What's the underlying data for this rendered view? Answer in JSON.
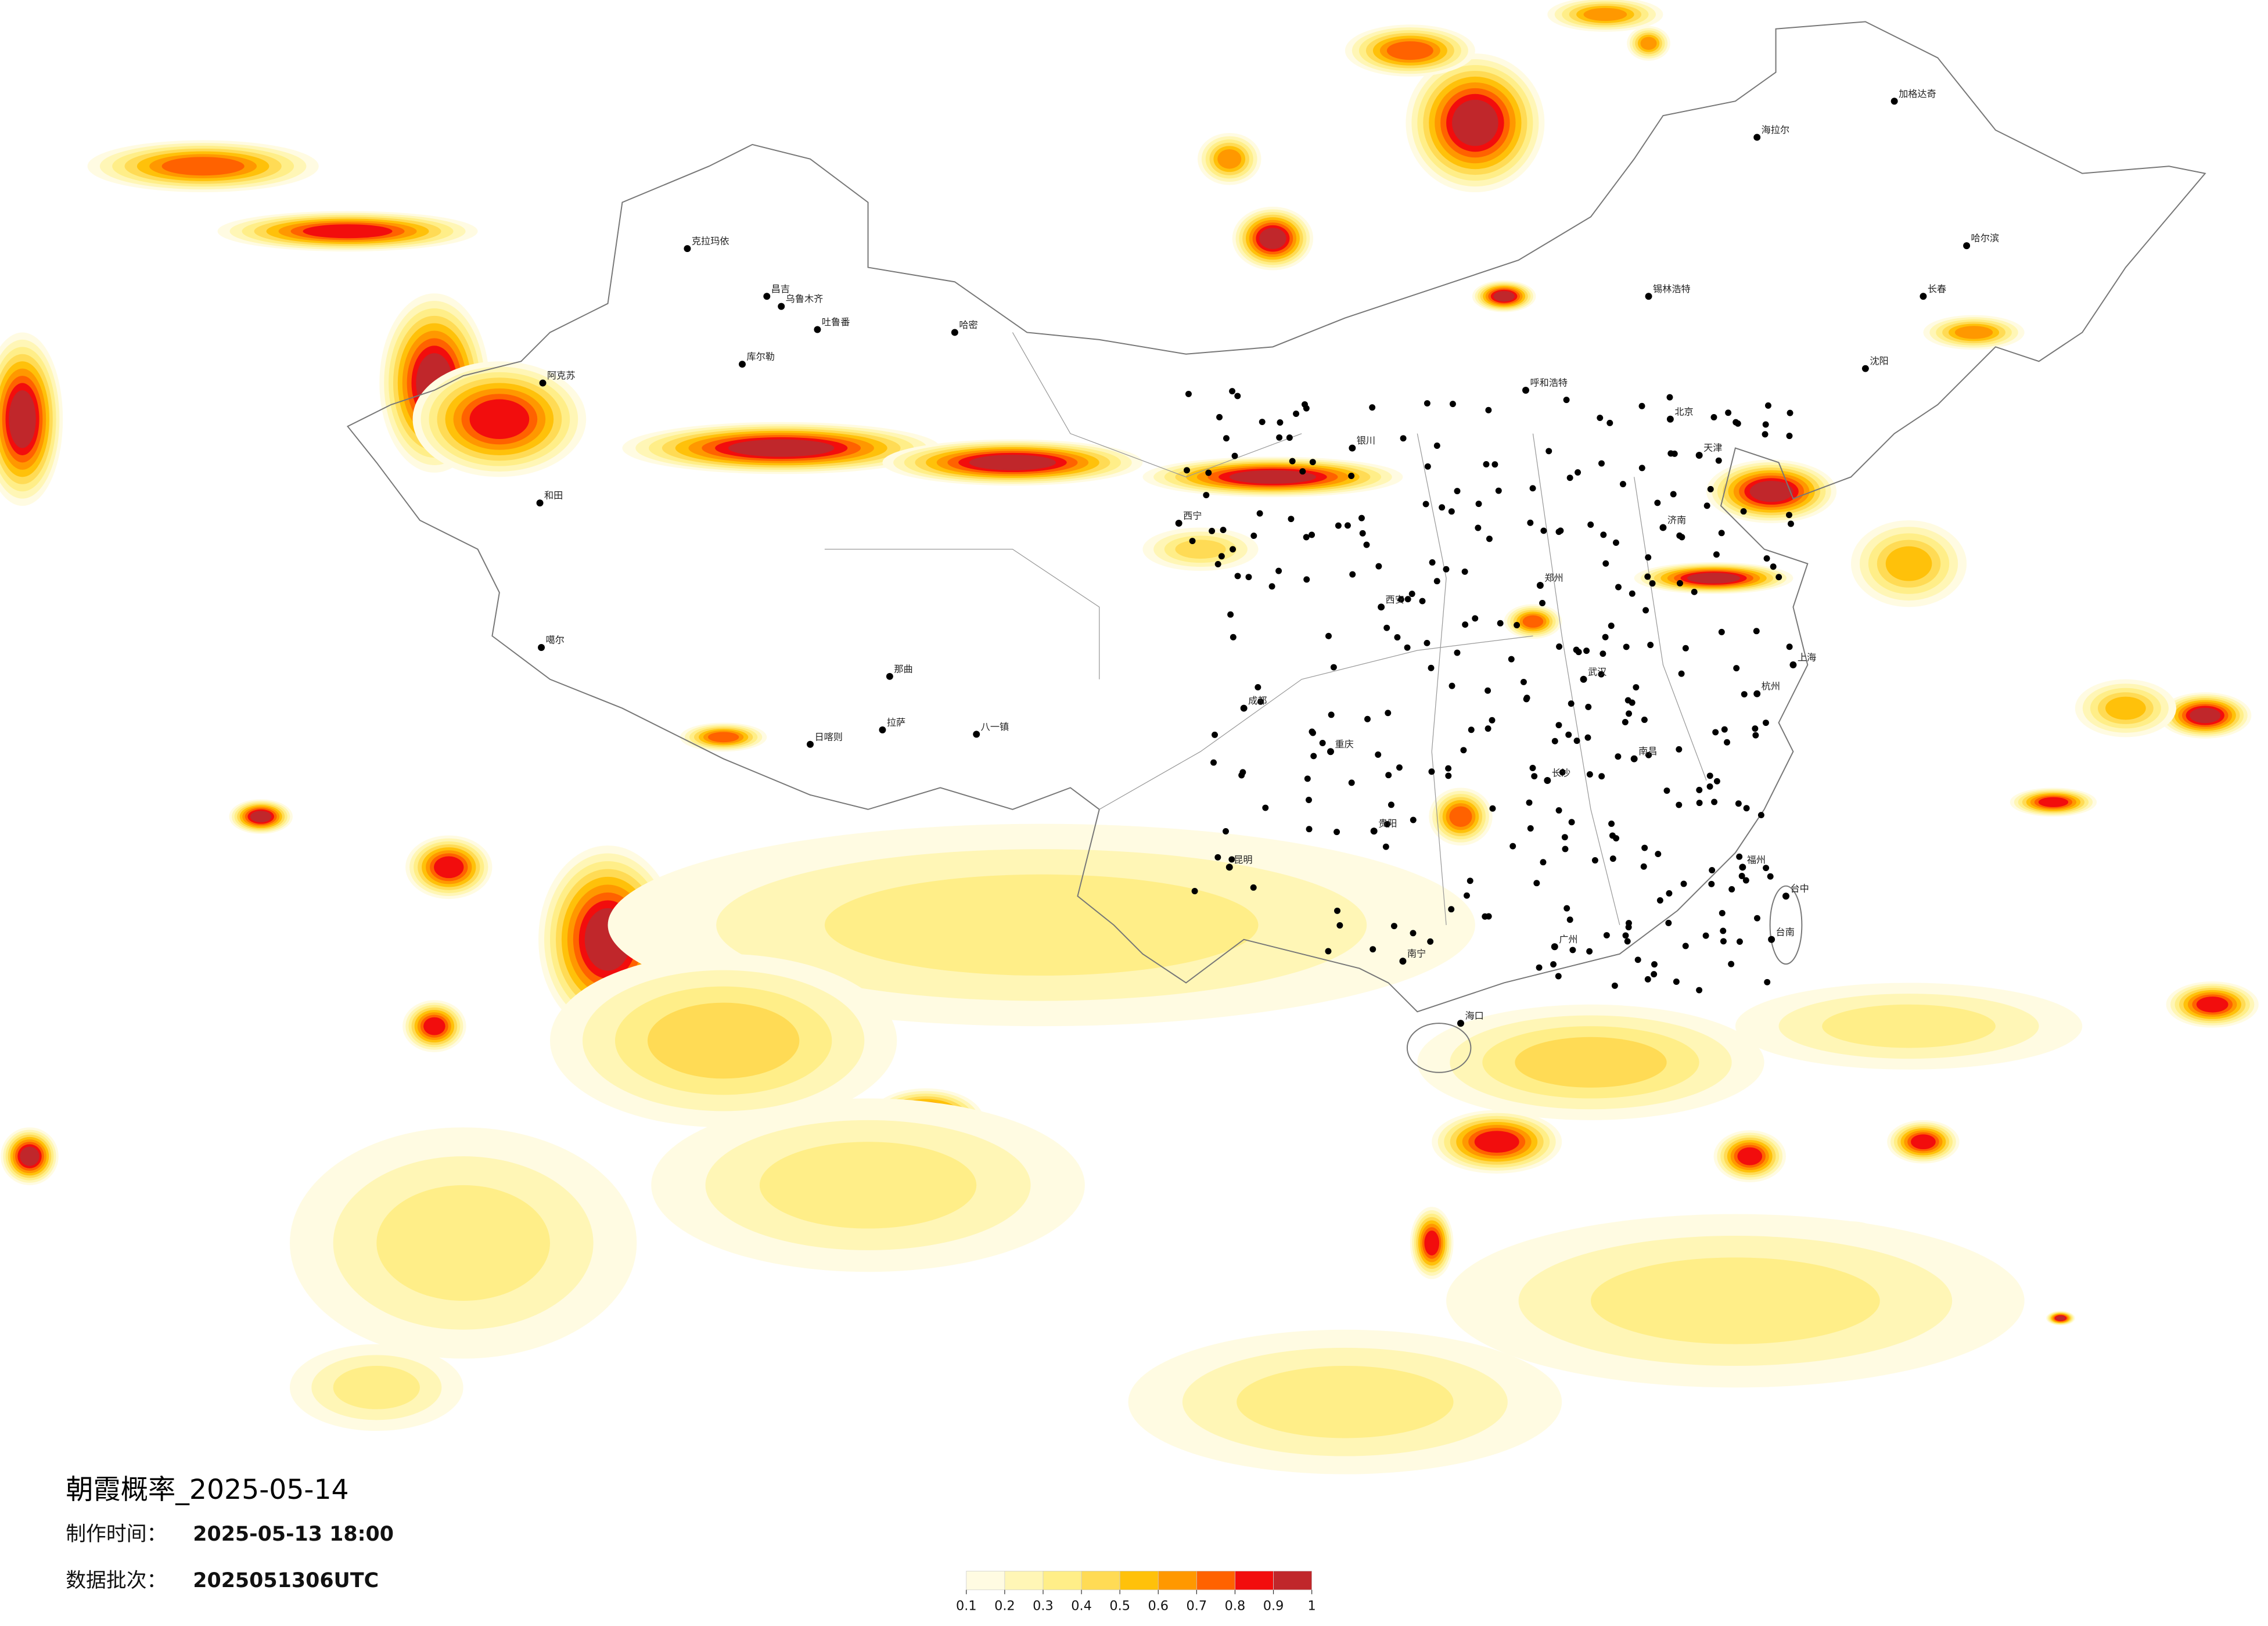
{
  "title": "朝霞概率_2025-05-14",
  "made_time": {
    "label": "制作时间：",
    "value": "2025-05-13 18:00"
  },
  "batch": {
    "label": "数据批次：",
    "value": "2025051306UTC"
  },
  "colorbar": {
    "ticks": [
      0.1,
      0.2,
      0.3,
      0.4,
      0.5,
      0.6,
      0.7,
      0.8,
      0.9,
      1
    ],
    "colors": [
      "#fffbe2",
      "#fff6b6",
      "#ffee88",
      "#ffdb55",
      "#ffc10a",
      "#ff9800",
      "#ff6200",
      "#f20d0d",
      "#c0272b"
    ]
  },
  "cities": [
    "克拉玛依",
    "昌吉",
    "乌鲁木齐",
    "吐鲁番",
    "哈密",
    "库尔勒",
    "阿克苏",
    "和田",
    "噶尔",
    "日喀则",
    "拉萨",
    "那曲",
    "八一镇",
    "西宁",
    "银川",
    "呼和浩特",
    "北京",
    "天津",
    "济南",
    "郑州",
    "西安",
    "成都",
    "重庆",
    "武汉",
    "长沙",
    "南昌",
    "杭州",
    "上海",
    "福州",
    "广州",
    "南宁",
    "昆明",
    "贵阳",
    "海口",
    "哈尔滨",
    "长春",
    "沈阳",
    "海拉尔",
    "加格达奇",
    "锡林浩特",
    "台中",
    "台南"
  ]
}
